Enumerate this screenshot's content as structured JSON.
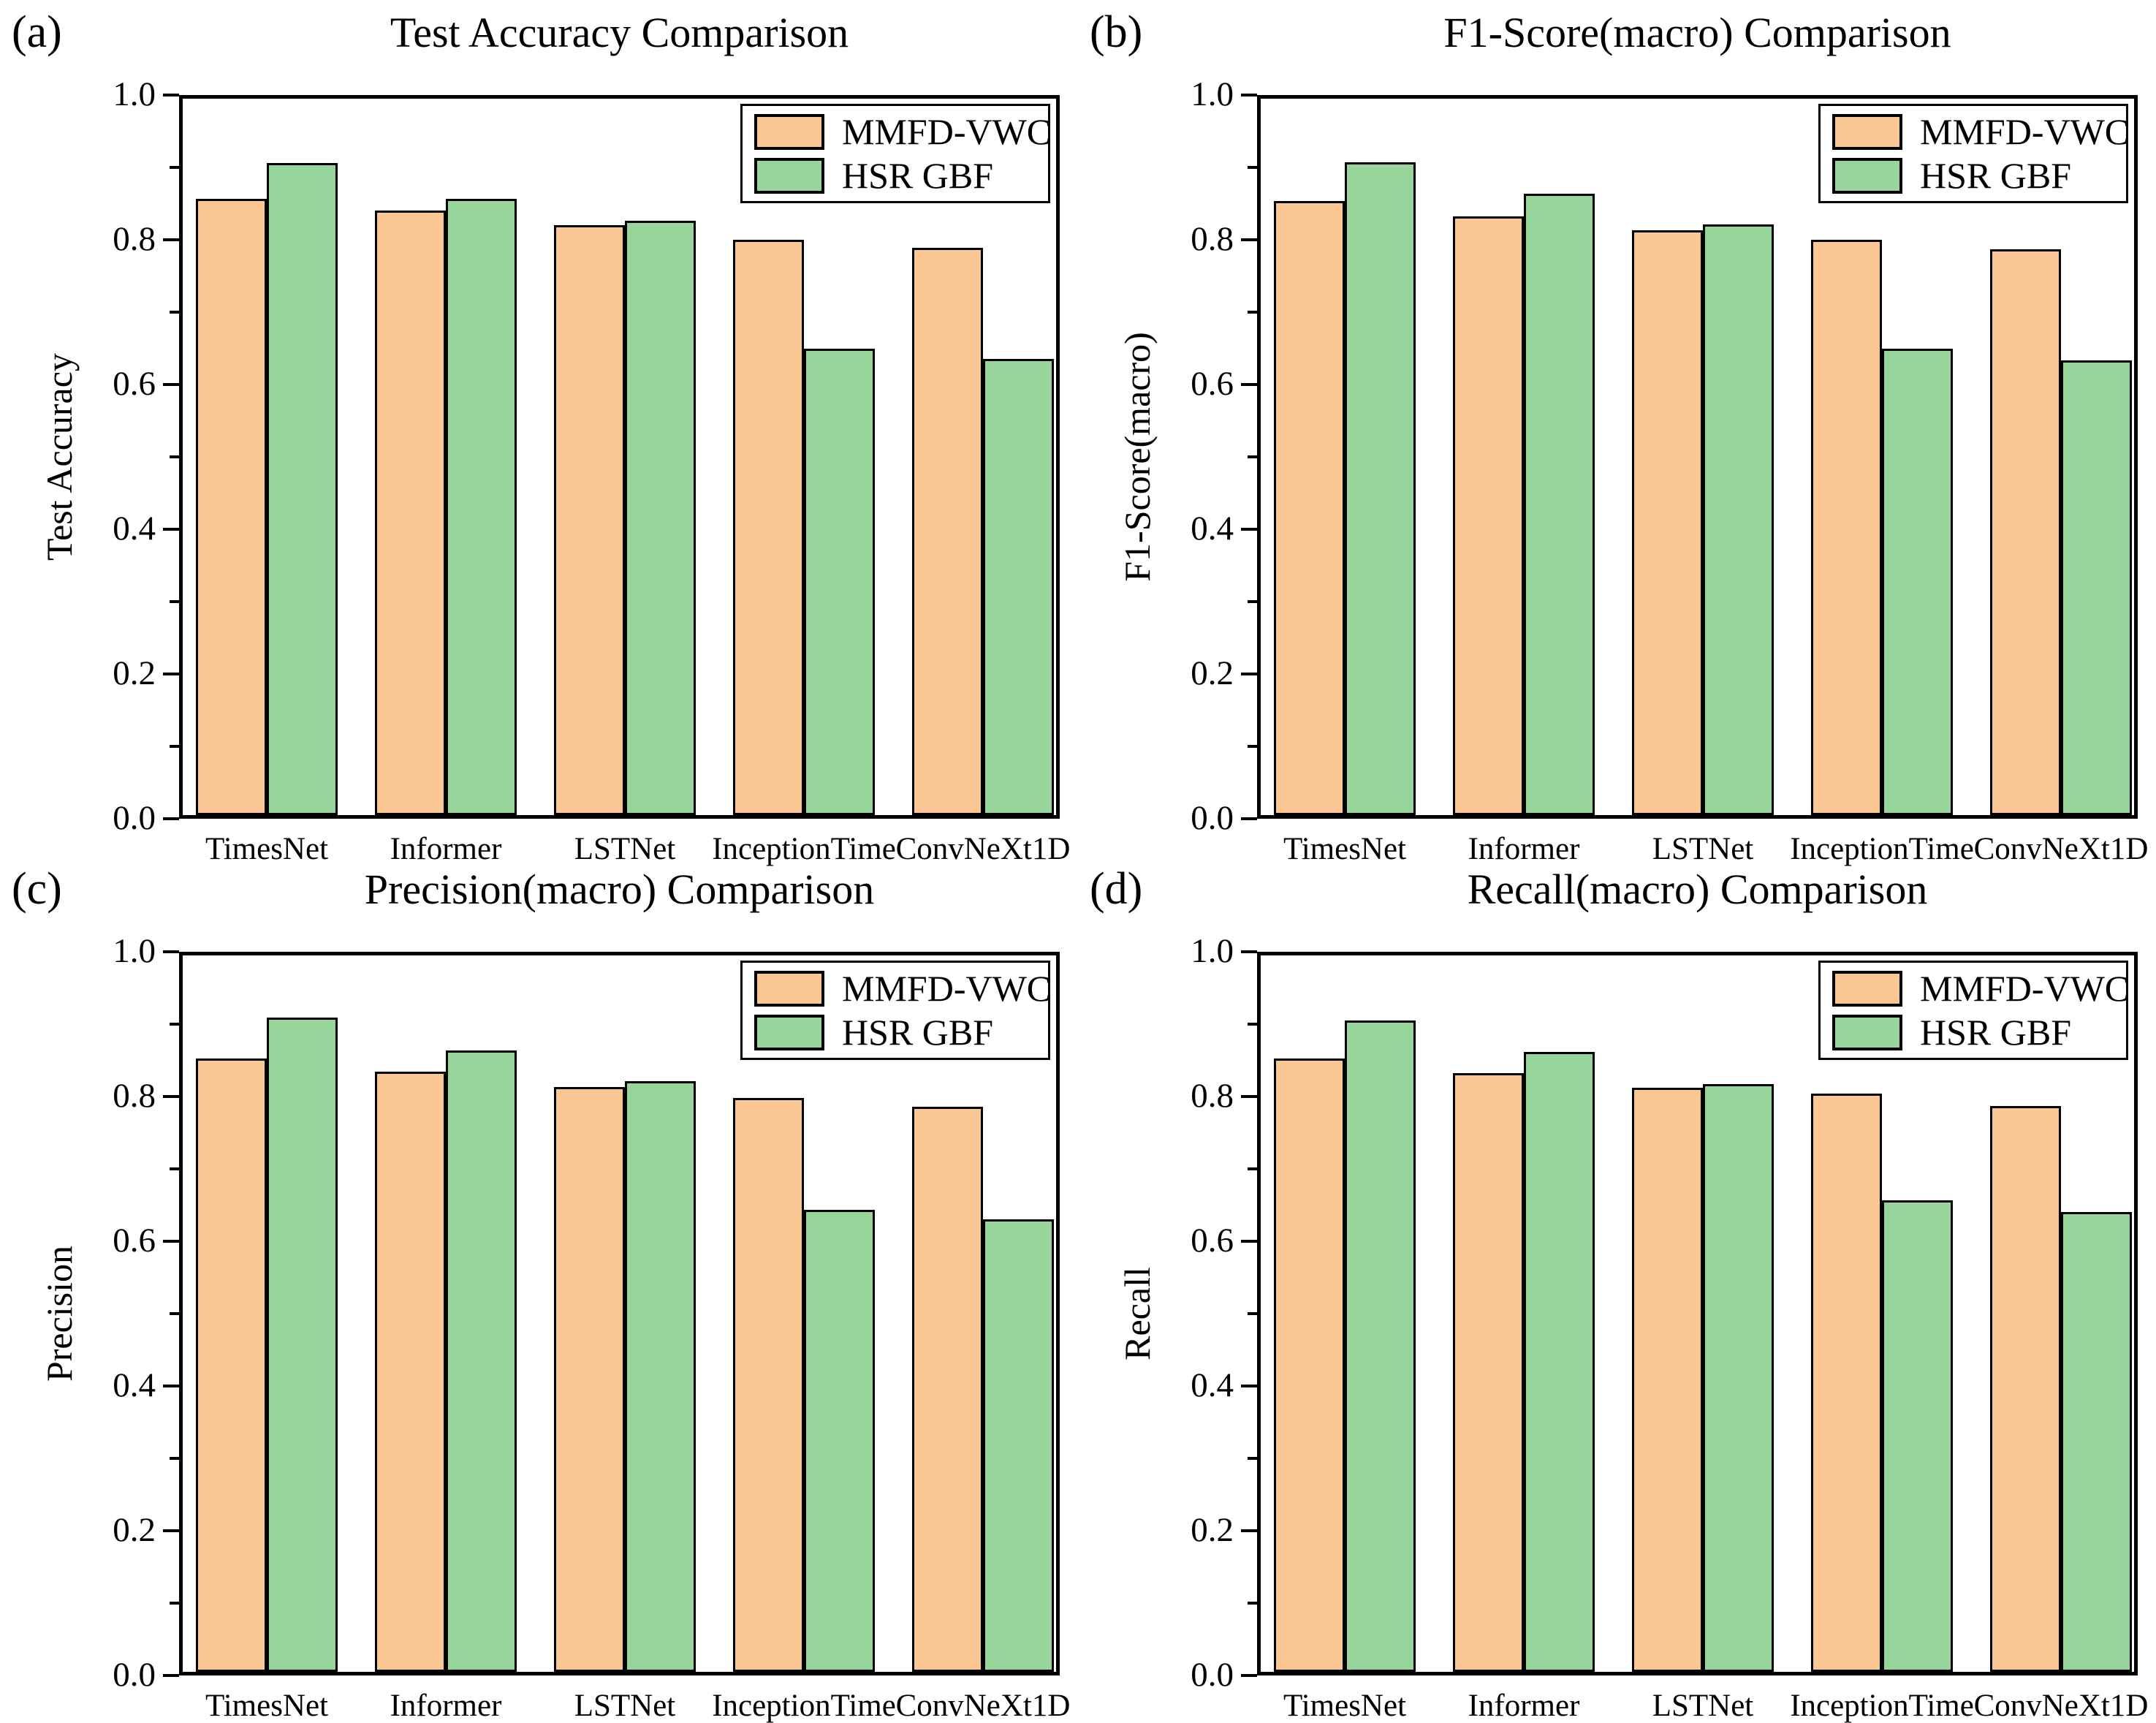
{
  "figure": {
    "colors": {
      "mmfd_vwc": "#FAC794",
      "hsr_gbf": "#97D59B",
      "edge": "#000000",
      "background": "#FFFFFF"
    },
    "legend": {
      "labels": [
        "MMFD-VWC",
        "HSR GBF"
      ],
      "position": "top-right"
    }
  },
  "chart_data": [
    {
      "type": "bar",
      "panel_label": "(a)",
      "title": "Test Accuracy Comparison",
      "xlabel": "",
      "ylabel": "Test Accuracy",
      "ylim": [
        0.0,
        1.0
      ],
      "yticks": [
        0.0,
        0.2,
        0.4,
        0.6,
        0.8,
        1.0
      ],
      "minor_tick_step": 0.1,
      "grid": false,
      "legend_position": "top-right",
      "categories": [
        "TimesNet",
        "Informer",
        "LSTNet",
        "InceptionTime",
        "ConvNeXt1D"
      ],
      "series": [
        {
          "name": "MMFD-VWC",
          "color": "#FAC794",
          "values": [
            0.86,
            0.844,
            0.823,
            0.803,
            0.792
          ]
        },
        {
          "name": "HSR GBF",
          "color": "#97D59B",
          "values": [
            0.91,
            0.86,
            0.83,
            0.651,
            0.637
          ]
        }
      ]
    },
    {
      "type": "bar",
      "panel_label": "(b)",
      "title": "F1-Score(macro) Comparison",
      "xlabel": "",
      "ylabel": "F1-Score(macro)",
      "ylim": [
        0.0,
        1.0
      ],
      "yticks": [
        0.0,
        0.2,
        0.4,
        0.6,
        0.8,
        1.0
      ],
      "minor_tick_step": 0.1,
      "grid": false,
      "legend_position": "top-right",
      "categories": [
        "TimesNet",
        "Informer",
        "LSTNet",
        "InceptionTime",
        "ConvNeXt1D"
      ],
      "series": [
        {
          "name": "MMFD-VWC",
          "color": "#FAC794",
          "values": [
            0.857,
            0.836,
            0.816,
            0.803,
            0.79
          ]
        },
        {
          "name": "HSR GBF",
          "color": "#97D59B",
          "values": [
            0.911,
            0.867,
            0.824,
            0.651,
            0.635
          ]
        }
      ]
    },
    {
      "type": "bar",
      "panel_label": "(c)",
      "title": "Precision(macro) Comparison",
      "xlabel": "",
      "ylabel": "Precision",
      "ylim": [
        0.0,
        1.0
      ],
      "yticks": [
        0.0,
        0.2,
        0.4,
        0.6,
        0.8,
        1.0
      ],
      "minor_tick_step": 0.1,
      "grid": false,
      "legend_position": "top-right",
      "categories": [
        "TimesNet",
        "Informer",
        "LSTNet",
        "InceptionTime",
        "ConvNeXt1D"
      ],
      "series": [
        {
          "name": "MMFD-VWC",
          "color": "#FAC794",
          "values": [
            0.856,
            0.838,
            0.816,
            0.801,
            0.789
          ]
        },
        {
          "name": "HSR GBF",
          "color": "#97D59B",
          "values": [
            0.913,
            0.867,
            0.824,
            0.645,
            0.632
          ]
        }
      ]
    },
    {
      "type": "bar",
      "panel_label": "(d)",
      "title": "Recall(macro) Comparison",
      "xlabel": "",
      "ylabel": "Recall",
      "ylim": [
        0.0,
        1.0
      ],
      "yticks": [
        0.0,
        0.2,
        0.4,
        0.6,
        0.8,
        1.0
      ],
      "minor_tick_step": 0.1,
      "grid": false,
      "legend_position": "top-right",
      "categories": [
        "TimesNet",
        "Informer",
        "LSTNet",
        "InceptionTime",
        "ConvNeXt1D"
      ],
      "series": [
        {
          "name": "MMFD-VWC",
          "color": "#FAC794",
          "values": [
            0.856,
            0.836,
            0.815,
            0.807,
            0.79
          ]
        },
        {
          "name": "HSR GBF",
          "color": "#97D59B",
          "values": [
            0.909,
            0.865,
            0.82,
            0.658,
            0.642
          ]
        }
      ]
    }
  ]
}
